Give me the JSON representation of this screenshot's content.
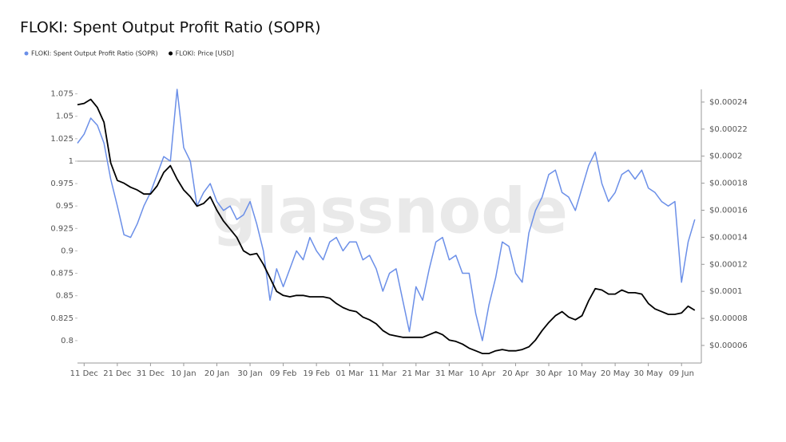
{
  "chart_data": {
    "type": "line",
    "title": "FLOKI: Spent Output Profit Ratio (SOPR)",
    "watermark": "glassnode",
    "categories": [
      null,
      "11 Dec",
      null,
      null,
      null,
      null,
      "21 Dec",
      null,
      null,
      null,
      null,
      "31 Dec",
      null,
      null,
      null,
      null,
      "10 Jan",
      null,
      null,
      null,
      null,
      "20 Jan",
      null,
      null,
      null,
      null,
      "30 Jan",
      null,
      null,
      null,
      null,
      "09 Feb",
      null,
      null,
      null,
      null,
      "19 Feb",
      null,
      null,
      null,
      null,
      "01 Mar",
      null,
      null,
      null,
      null,
      "11 Mar",
      null,
      null,
      null,
      null,
      "21 Mar",
      null,
      null,
      null,
      null,
      "31 Mar",
      null,
      null,
      null,
      null,
      "10 Apr",
      null,
      null,
      null,
      null,
      "20 Apr",
      null,
      null,
      null,
      null,
      "30 Apr",
      null,
      null,
      null,
      null,
      "10 May",
      null,
      null,
      null,
      null,
      "20 May",
      null,
      null,
      null,
      null,
      "30 May",
      null,
      null,
      null,
      null,
      "09 Jun",
      null,
      null
    ],
    "series": [
      {
        "name": "FLOKI: Spent Output Profit Ratio (SOPR)",
        "color": "#6b8fe8",
        "axis": "y",
        "values": [
          1.02,
          1.03,
          1.048,
          1.04,
          1.02,
          0.98,
          0.95,
          0.918,
          0.915,
          0.93,
          0.95,
          0.965,
          0.985,
          1.005,
          1.0,
          1.08,
          1.015,
          1.0,
          0.95,
          0.965,
          0.975,
          0.955,
          0.945,
          0.95,
          0.935,
          0.94,
          0.955,
          0.93,
          0.9,
          0.845,
          0.88,
          0.86,
          0.88,
          0.9,
          0.89,
          0.915,
          0.9,
          0.89,
          0.91,
          0.915,
          0.9,
          0.91,
          0.91,
          0.89,
          0.895,
          0.88,
          0.855,
          0.875,
          0.88,
          0.845,
          0.81,
          0.86,
          0.845,
          0.88,
          0.91,
          0.915,
          0.89,
          0.895,
          0.875,
          0.875,
          0.83,
          0.8,
          0.84,
          0.87,
          0.91,
          0.905,
          0.875,
          0.865,
          0.92,
          0.945,
          0.96,
          0.985,
          0.99,
          0.965,
          0.96,
          0.945,
          0.97,
          0.995,
          1.01,
          0.975,
          0.955,
          0.965,
          0.985,
          0.99,
          0.98,
          0.99,
          0.97,
          0.965,
          0.955,
          0.95,
          0.955,
          0.865,
          0.91,
          0.935
        ]
      },
      {
        "name": "FLOKI: Price [USD]",
        "color": "#000000",
        "axis": "y2",
        "values": [
          0.000238,
          0.000239,
          0.000242,
          0.000236,
          0.000225,
          0.000195,
          0.000182,
          0.00018,
          0.000177,
          0.000175,
          0.000172,
          0.000172,
          0.000178,
          0.000188,
          0.000193,
          0.000183,
          0.000175,
          0.00017,
          0.000163,
          0.000165,
          0.00017,
          0.00016,
          0.000152,
          0.000146,
          0.00014,
          0.00013,
          0.000127,
          0.000128,
          0.00012,
          0.00011,
          0.0001,
          9.7e-05,
          9.6e-05,
          9.7e-05,
          9.7e-05,
          9.6e-05,
          9.6e-05,
          9.6e-05,
          9.5e-05,
          9.1e-05,
          8.8e-05,
          8.6e-05,
          8.5e-05,
          8.1e-05,
          7.9e-05,
          7.6e-05,
          7.1e-05,
          6.8e-05,
          6.7e-05,
          6.6e-05,
          6.6e-05,
          6.6e-05,
          6.6e-05,
          6.8e-05,
          7e-05,
          6.8e-05,
          6.4e-05,
          6.3e-05,
          6.1e-05,
          5.8e-05,
          5.6e-05,
          5.4e-05,
          5.4e-05,
          5.6e-05,
          5.7e-05,
          5.6e-05,
          5.6e-05,
          5.7e-05,
          5.9e-05,
          6.4e-05,
          7.1e-05,
          7.7e-05,
          8.2e-05,
          8.5e-05,
          8.1e-05,
          7.9e-05,
          8.2e-05,
          9.3e-05,
          0.000102,
          0.000101,
          9.8e-05,
          9.8e-05,
          0.000101,
          9.9e-05,
          9.9e-05,
          9.8e-05,
          9.1e-05,
          8.7e-05,
          8.5e-05,
          8.3e-05,
          8.3e-05,
          8.4e-05,
          8.9e-05,
          8.6e-05
        ]
      }
    ],
    "ylim": [
      0.775,
      1.08
    ],
    "yticks": [
      0.8,
      0.825,
      0.85,
      0.875,
      0.9,
      0.925,
      0.95,
      0.975,
      1,
      1.025,
      1.05,
      1.075
    ],
    "y2lim": [
      4.7e-05,
      0.0002494
    ],
    "y2ticks": [
      {
        "value": 6e-05,
        "label": "$0.00006"
      },
      {
        "value": 8e-05,
        "label": "$0.00008"
      },
      {
        "value": 0.0001,
        "label": "$0.0001"
      },
      {
        "value": 0.00012,
        "label": "$0.00012"
      },
      {
        "value": 0.00014,
        "label": "$0.00014"
      },
      {
        "value": 0.00016,
        "label": "$0.00016"
      },
      {
        "value": 0.00018,
        "label": "$0.00018"
      },
      {
        "value": 0.0002,
        "label": "$0.0002"
      },
      {
        "value": 0.00022,
        "label": "$0.00022"
      },
      {
        "value": 0.00024,
        "label": "$0.00024"
      }
    ],
    "reference_line": 1,
    "legend": "top-left"
  }
}
